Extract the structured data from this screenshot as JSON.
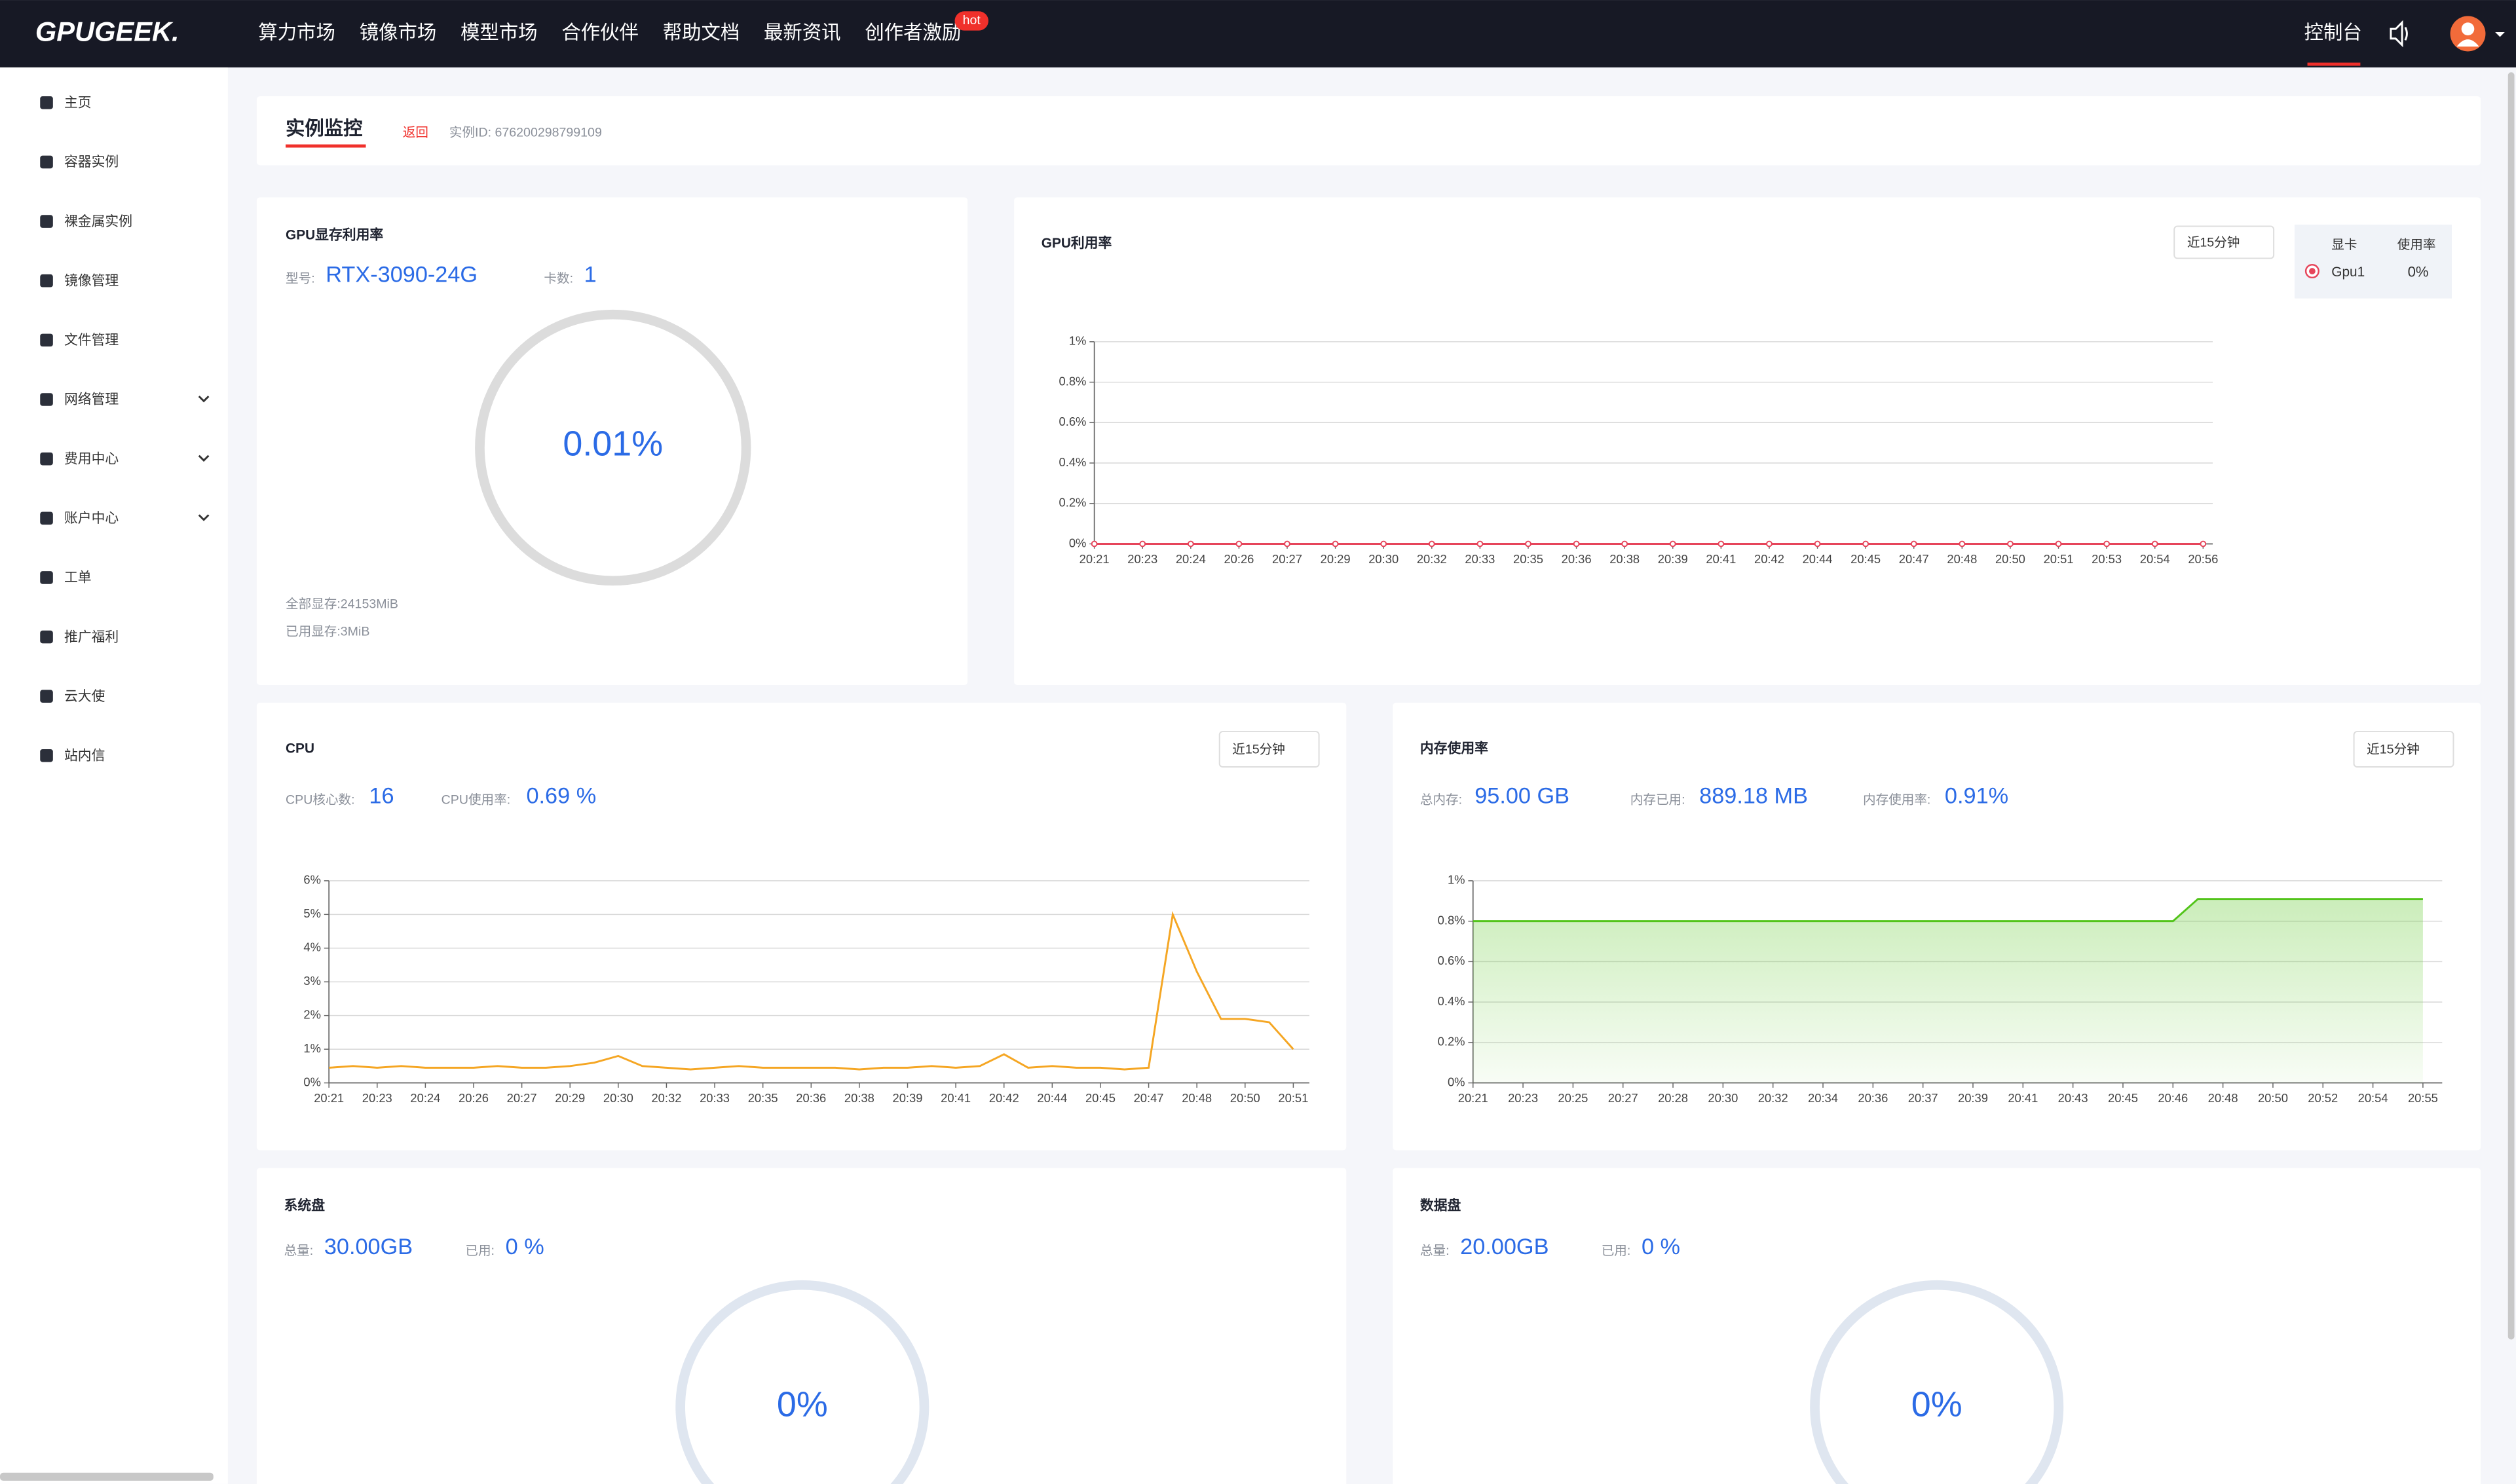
{
  "nav": {
    "logo": "GPUGEEK.",
    "menu": [
      "算力市场",
      "镜像市场",
      "模型市场",
      "合作伙伴",
      "帮助文档",
      "最新资讯",
      "创作者激励"
    ],
    "badge": "hot",
    "console": "控制台"
  },
  "sidebar": [
    "主页",
    "容器实例",
    "裸金属实例",
    "镜像管理",
    "文件管理",
    "网络管理",
    "费用中心",
    "账户中心",
    "工单",
    "推广福利",
    "云大使",
    "站内信"
  ],
  "header": {
    "title": "实例监控",
    "back": "返回",
    "instance_id": "实例ID: 676200298799109"
  },
  "gpu_memory": {
    "title": "GPU显存利用率",
    "model_label": "型号:",
    "model": "RTX-3090-24G",
    "count_label": "卡数:",
    "count": "1",
    "gauge": "0.01%",
    "total": "全部显存:24153MiB",
    "used": "已用显存:3MiB"
  },
  "panels": {
    "gpu_util": {
      "range": "近15分钟",
      "legend_headers": [
        "显卡",
        "使用率"
      ],
      "legend_value": "0%"
    },
    "cpu": {
      "range": "近15分钟",
      "stats": [
        {
          "label": "CPU核心数:",
          "value": "16"
        },
        {
          "label": "CPU使用率:",
          "value": "0.69 %"
        }
      ]
    },
    "memory": {
      "range": "近15分钟",
      "stats": [
        {
          "label": "总内存:",
          "value": "95.00 GB"
        },
        {
          "label": "内存已用:",
          "value": "889.18 MB"
        },
        {
          "label": "内存使用率:",
          "value": "0.91%"
        }
      ]
    }
  },
  "disks": [
    {
      "title": "系统盘",
      "total_label": "总量:",
      "total": "30.00GB",
      "used_label": "已用:",
      "used": "0 %",
      "gauge": "0%"
    },
    {
      "title": "数据盘",
      "total_label": "总量:",
      "total": "20.00GB",
      "used_label": "已用:",
      "used": "0 %",
      "gauge": "0%"
    }
  ],
  "chart_data": [
    {
      "type": "line",
      "title": "GPU利用率",
      "markers": true,
      "grid": true,
      "categories": [
        "20:21",
        "20:23",
        "20:24",
        "20:26",
        "20:27",
        "20:29",
        "20:30",
        "20:32",
        "20:33",
        "20:35",
        "20:36",
        "20:38",
        "20:39",
        "20:41",
        "20:42",
        "20:44",
        "20:45",
        "20:47",
        "20:48",
        "20:50",
        "20:51",
        "20:53",
        "20:54",
        "20:56"
      ],
      "series": [
        {
          "name": "Gpu1",
          "color": "#e6455b",
          "values": [
            0,
            0,
            0,
            0,
            0,
            0,
            0,
            0,
            0,
            0,
            0,
            0,
            0,
            0,
            0,
            0,
            0,
            0,
            0,
            0,
            0,
            0,
            0,
            0
          ]
        }
      ],
      "ylim": [
        0,
        1
      ],
      "yticks": [
        {
          "value": 0,
          "label": "0%"
        },
        {
          "value": 0.2,
          "label": "0.2%"
        },
        {
          "value": 0.4,
          "label": "0.4%"
        },
        {
          "value": 0.6,
          "label": "0.6%"
        },
        {
          "value": 0.8,
          "label": "0.8%"
        },
        {
          "value": 1,
          "label": "1%"
        }
      ]
    },
    {
      "type": "line",
      "title": "CPU",
      "grid": true,
      "color": "#f5a623",
      "categories": [
        "20:21",
        null,
        "20:23",
        null,
        "20:24",
        null,
        "20:26",
        null,
        "20:27",
        null,
        "20:29",
        null,
        "20:30",
        null,
        "20:32",
        null,
        "20:33",
        null,
        "20:35",
        null,
        "20:36",
        null,
        "20:38",
        null,
        "20:39",
        null,
        "20:41",
        null,
        "20:42",
        null,
        "20:44",
        null,
        "20:45",
        null,
        "20:47",
        null,
        "20:48",
        null,
        "20:50",
        null,
        "20:51"
      ],
      "values": [
        0.45,
        0.5,
        0.45,
        0.5,
        0.45,
        0.45,
        0.45,
        0.5,
        0.45,
        0.45,
        0.5,
        0.6,
        0.8,
        0.5,
        0.45,
        0.4,
        0.45,
        0.5,
        0.45,
        0.45,
        0.45,
        0.45,
        0.4,
        0.45,
        0.45,
        0.5,
        0.45,
        0.5,
        0.85,
        0.45,
        0.5,
        0.45,
        0.45,
        0.4,
        0.45,
        5.0,
        3.3,
        1.9,
        1.9,
        1.8,
        1.0
      ],
      "ylim": [
        0,
        6
      ],
      "yticks": [
        {
          "value": 0,
          "label": "0%"
        },
        {
          "value": 1,
          "label": "1%"
        },
        {
          "value": 2,
          "label": "2%"
        },
        {
          "value": 3,
          "label": "3%"
        },
        {
          "value": 4,
          "label": "4%"
        },
        {
          "value": 5,
          "label": "5%"
        },
        {
          "value": 6,
          "label": "6%"
        }
      ]
    },
    {
      "type": "area",
      "title": "内存使用率",
      "grid": true,
      "color": "#52c41a",
      "categories": [
        "20:21",
        null,
        "20:23",
        null,
        "20:25",
        null,
        "20:27",
        null,
        "20:28",
        null,
        "20:30",
        null,
        "20:32",
        null,
        "20:34",
        null,
        "20:36",
        null,
        "20:37",
        null,
        "20:39",
        null,
        "20:41",
        null,
        "20:43",
        null,
        "20:45",
        null,
        "20:46",
        null,
        "20:48",
        null,
        "20:50",
        null,
        "20:52",
        null,
        "20:54",
        null,
        "20:55"
      ],
      "values": [
        0.8,
        0.8,
        0.8,
        0.8,
        0.8,
        0.8,
        0.8,
        0.8,
        0.8,
        0.8,
        0.8,
        0.8,
        0.8,
        0.8,
        0.8,
        0.8,
        0.8,
        0.8,
        0.8,
        0.8,
        0.8,
        0.8,
        0.8,
        0.8,
        0.8,
        0.8,
        0.8,
        0.8,
        0.8,
        0.91,
        0.91,
        0.91,
        0.91,
        0.91,
        0.91,
        0.91,
        0.91,
        0.91,
        0.91
      ],
      "ylim": [
        0,
        1
      ],
      "yticks": [
        {
          "value": 0,
          "label": "0%"
        },
        {
          "value": 0.2,
          "label": "0.2%"
        },
        {
          "value": 0.4,
          "label": "0.4%"
        },
        {
          "value": 0.6,
          "label": "0.6%"
        },
        {
          "value": 0.8,
          "label": "0.8%"
        },
        {
          "value": 1,
          "label": "1%"
        }
      ]
    }
  ]
}
